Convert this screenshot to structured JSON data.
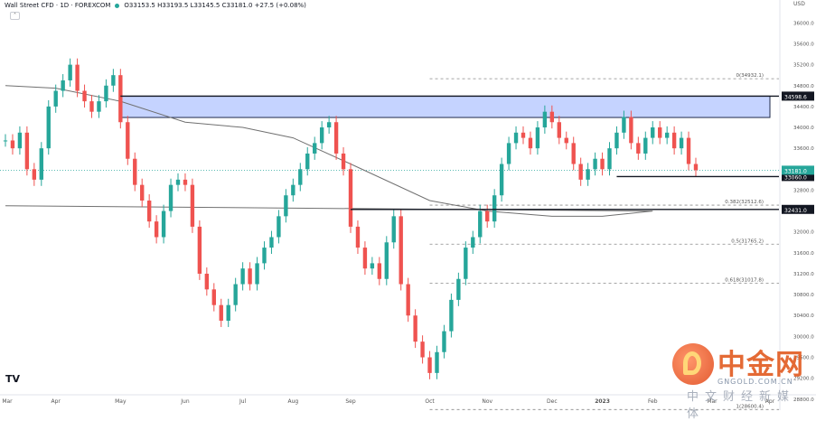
{
  "header": {
    "title": "Wall Street CFD · 1D · FOREXCOM",
    "ohlc": "O33153.5 H33193.5 L33145.5 C33181.0 +27.5 (+0.08%)",
    "collapse_label": "˄"
  },
  "logo": {
    "text": "TV"
  },
  "watermark": {
    "cn": "中金网",
    "site": "GNGOLD.COM.CN",
    "tagline": "中文财经新媒体"
  },
  "colors": {
    "up": "#26a69a",
    "down": "#ef5350",
    "zone": "#c5d3ff",
    "ma": "#707070",
    "price_line": "#26a69a"
  },
  "chart_data": {
    "type": "candlestick",
    "instrument": "Wall Street CFD",
    "timeframe": "1D",
    "ylim": [
      28900,
      36300
    ],
    "currency": "USD",
    "price_ticks": [
      "36000.0",
      "35600.0",
      "35200.0",
      "34800.0",
      "34400.0",
      "34000.0",
      "33600.0",
      "32800.0",
      "32000.0",
      "31600.0",
      "31200.0",
      "30800.0",
      "30400.0",
      "30000.0",
      "29600.0",
      "29200.0",
      "28800.0"
    ],
    "time_labels": [
      "Mar",
      "Apr",
      "May",
      "Jun",
      "Jul",
      "Aug",
      "Sep",
      "Oct",
      "Nov",
      "Dec",
      "2023",
      "Feb",
      "Mar",
      "Apr"
    ],
    "last_price": {
      "value": 33181.0,
      "label": "33181.0"
    },
    "levels": [
      {
        "label": "34598.6",
        "value": 34598.6
      },
      {
        "label": "33060.0",
        "value": 33060.0
      },
      {
        "label": "32431.0",
        "value": 32431.0
      }
    ],
    "fib_levels": [
      {
        "label": "0(34932.1)",
        "value": 34932.1
      },
      {
        "label": "0.382(32512.6)",
        "value": 32512.6
      },
      {
        "label": "0.5(31765.2)",
        "value": 31765.2
      },
      {
        "label": "0.618(31017.8)",
        "value": 31017.8
      },
      {
        "label": "1(28600.4)",
        "value": 28600.4
      }
    ],
    "zone": {
      "top": 34598.6,
      "bottom": 34190.0
    },
    "close_path": [
      [
        "Mar",
        33750
      ],
      [
        "",
        33600
      ],
      [
        "",
        33900
      ],
      [
        "",
        33200
      ],
      [
        "",
        33000
      ],
      [
        "",
        33600
      ],
      [
        "",
        34400
      ],
      [
        "Apr",
        34700
      ],
      [
        "",
        34900
      ],
      [
        "",
        35200
      ],
      [
        "",
        34700
      ],
      [
        "",
        34500
      ],
      [
        "",
        34300
      ],
      [
        "",
        34500
      ],
      [
        "",
        34800
      ],
      [
        "",
        35000
      ],
      [
        "May",
        34100
      ],
      [
        "",
        33400
      ],
      [
        "",
        32900
      ],
      [
        "",
        32600
      ],
      [
        "",
        32200
      ],
      [
        "",
        31900
      ],
      [
        "",
        32400
      ],
      [
        "",
        32900
      ],
      [
        "",
        33000
      ],
      [
        "Jun",
        32900
      ],
      [
        "",
        32100
      ],
      [
        "",
        31200
      ],
      [
        "",
        30900
      ],
      [
        "",
        30600
      ],
      [
        "",
        30300
      ],
      [
        "",
        30600
      ],
      [
        "",
        31000
      ],
      [
        "Jul",
        31300
      ],
      [
        "",
        31000
      ],
      [
        "",
        31400
      ],
      [
        "",
        31700
      ],
      [
        "",
        31900
      ],
      [
        "",
        32300
      ],
      [
        "",
        32700
      ],
      [
        "Aug",
        32900
      ],
      [
        "",
        33200
      ],
      [
        "",
        33500
      ],
      [
        "",
        33700
      ],
      [
        "",
        34000
      ],
      [
        "",
        34100
      ],
      [
        "",
        33500
      ],
      [
        "",
        33200
      ],
      [
        "Sep",
        32100
      ],
      [
        "",
        31700
      ],
      [
        "",
        31300
      ],
      [
        "",
        31400
      ],
      [
        "",
        31100
      ],
      [
        "",
        31800
      ],
      [
        "",
        32300
      ],
      [
        "",
        31000
      ],
      [
        "",
        30400
      ],
      [
        "",
        29900
      ],
      [
        "",
        29600
      ],
      [
        "Oct",
        29300
      ],
      [
        "",
        29700
      ],
      [
        "",
        30100
      ],
      [
        "",
        30700
      ],
      [
        "",
        31100
      ],
      [
        "",
        31700
      ],
      [
        "",
        31900
      ],
      [
        "",
        32400
      ],
      [
        "Nov",
        32200
      ],
      [
        "",
        32700
      ],
      [
        "",
        33300
      ],
      [
        "",
        33700
      ],
      [
        "",
        33900
      ],
      [
        "",
        33800
      ],
      [
        "",
        33600
      ],
      [
        "",
        34000
      ],
      [
        "",
        34300
      ],
      [
        "Dec",
        34100
      ],
      [
        "",
        33800
      ],
      [
        "",
        33700
      ],
      [
        "",
        33300
      ],
      [
        "",
        33000
      ],
      [
        "",
        33200
      ],
      [
        "",
        33400
      ],
      [
        "2023",
        33200
      ],
      [
        "",
        33600
      ],
      [
        "",
        33900
      ],
      [
        "",
        34200
      ],
      [
        "",
        33700
      ],
      [
        "",
        33500
      ],
      [
        "",
        33800
      ],
      [
        "Feb",
        34000
      ],
      [
        "",
        33800
      ],
      [
        "",
        33900
      ],
      [
        "",
        33600
      ],
      [
        "",
        33800
      ],
      [
        "",
        33300
      ],
      [
        "",
        33181
      ]
    ],
    "ma_path": [
      [
        "Mar",
        34800
      ],
      [
        "Apr",
        34750
      ],
      [
        "May",
        34500
      ],
      [
        "Jun",
        34100
      ],
      [
        "Jul",
        34000
      ],
      [
        "Aug",
        33800
      ],
      [
        "Sep",
        33300
      ],
      [
        "Oct",
        32600
      ],
      [
        "Nov",
        32400
      ],
      [
        "Dec",
        32300
      ],
      [
        "2023",
        32300
      ],
      [
        "Feb",
        32400
      ],
      [
        "Mar",
        32500
      ]
    ]
  }
}
